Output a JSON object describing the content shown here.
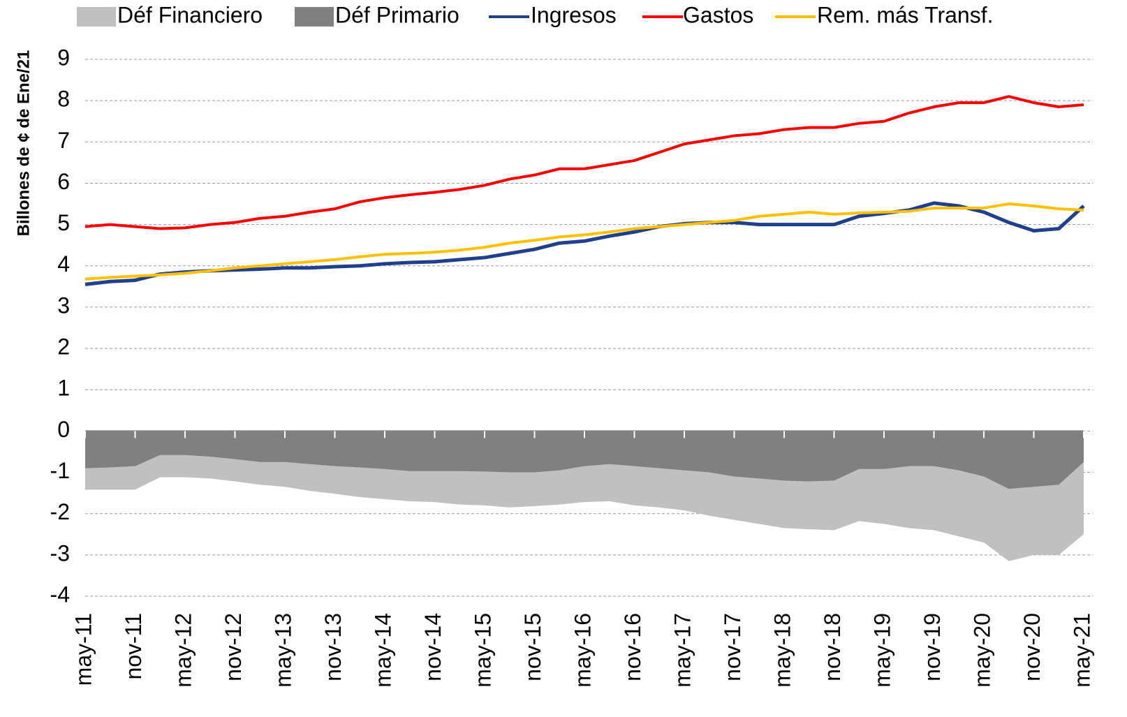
{
  "chart_data": {
    "type": "line",
    "y_label": "Billones de ¢ de Ene/21",
    "categories": [
      "may-11",
      null,
      "nov-11",
      null,
      "may-12",
      null,
      "nov-12",
      null,
      "may-13",
      null,
      "nov-13",
      null,
      "may-14",
      null,
      "nov-14",
      null,
      "may-15",
      null,
      "nov-15",
      null,
      "may-16",
      null,
      "nov-16",
      null,
      "may-17",
      null,
      "nov-17",
      null,
      "may-18",
      null,
      "nov-18",
      null,
      "may-19",
      null,
      "nov-19",
      null,
      "may-20",
      null,
      "nov-20",
      null,
      "may-21"
    ],
    "series": [
      {
        "name": "Déf Financiero",
        "type": "area",
        "color": "#c0c0c0",
        "values": [
          -1.42,
          -1.42,
          -1.42,
          -1.12,
          -1.12,
          -1.15,
          -1.22,
          -1.3,
          -1.35,
          -1.45,
          -1.52,
          -1.6,
          -1.65,
          -1.7,
          -1.72,
          -1.78,
          -1.8,
          -1.85,
          -1.82,
          -1.78,
          -1.72,
          -1.7,
          -1.8,
          -1.85,
          -1.92,
          -2.05,
          -2.15,
          -2.25,
          -2.35,
          -2.38,
          -2.4,
          -2.18,
          -2.25,
          -2.35,
          -2.4,
          -2.55,
          -2.7,
          -3.15,
          -3.0,
          -3.0,
          -2.5
        ]
      },
      {
        "name": "Déf Primario",
        "type": "area",
        "color": "#808080",
        "values": [
          -0.9,
          -0.88,
          -0.85,
          -0.58,
          -0.58,
          -0.62,
          -0.68,
          -0.75,
          -0.75,
          -0.8,
          -0.85,
          -0.88,
          -0.92,
          -0.97,
          -0.97,
          -0.97,
          -0.98,
          -1.0,
          -1.0,
          -0.95,
          -0.85,
          -0.8,
          -0.85,
          -0.9,
          -0.95,
          -1.0,
          -1.1,
          -1.15,
          -1.2,
          -1.22,
          -1.2,
          -0.92,
          -0.92,
          -0.85,
          -0.85,
          -0.95,
          -1.1,
          -1.4,
          -1.35,
          -1.3,
          -0.75
        ]
      },
      {
        "name": "Ingresos",
        "type": "line",
        "color": "#1f3f8f",
        "values": [
          3.55,
          3.62,
          3.65,
          3.8,
          3.85,
          3.88,
          3.9,
          3.92,
          3.95,
          3.95,
          3.98,
          4.0,
          4.05,
          4.08,
          4.1,
          4.15,
          4.2,
          4.3,
          4.4,
          4.55,
          4.6,
          4.72,
          4.82,
          4.95,
          5.02,
          5.05,
          5.05,
          5.0,
          5.0,
          5.0,
          5.0,
          5.2,
          5.27,
          5.35,
          5.52,
          5.45,
          5.3,
          5.05,
          4.85,
          4.9,
          5.45
        ]
      },
      {
        "name": "Gastos",
        "type": "line",
        "color": "#ff0000",
        "values": [
          4.95,
          5.0,
          4.95,
          4.9,
          4.92,
          5.0,
          5.05,
          5.15,
          5.2,
          5.3,
          5.38,
          5.55,
          5.65,
          5.72,
          5.78,
          5.85,
          5.95,
          6.1,
          6.2,
          6.35,
          6.35,
          6.45,
          6.55,
          6.75,
          6.95,
          7.05,
          7.15,
          7.2,
          7.3,
          7.35,
          7.35,
          7.45,
          7.5,
          7.7,
          7.85,
          7.95,
          7.95,
          8.1,
          7.95,
          7.85,
          7.9
        ]
      },
      {
        "name": "Rem. más Transf.",
        "type": "line",
        "color": "#ffc000",
        "values": [
          3.68,
          3.72,
          3.75,
          3.78,
          3.82,
          3.88,
          3.95,
          4.0,
          4.05,
          4.1,
          4.15,
          4.22,
          4.28,
          4.3,
          4.33,
          4.38,
          4.45,
          4.55,
          4.62,
          4.7,
          4.75,
          4.82,
          4.9,
          4.95,
          5.0,
          5.05,
          5.1,
          5.2,
          5.25,
          5.3,
          5.25,
          5.28,
          5.3,
          5.32,
          5.4,
          5.4,
          5.4,
          5.5,
          5.45,
          5.38,
          5.35
        ]
      }
    ],
    "ylim": [
      -4,
      9
    ],
    "yticks": [
      -4,
      -3,
      -2,
      -1,
      0,
      1,
      2,
      3,
      4,
      5,
      6,
      7,
      8,
      9
    ],
    "grid": true,
    "legend": "top"
  }
}
